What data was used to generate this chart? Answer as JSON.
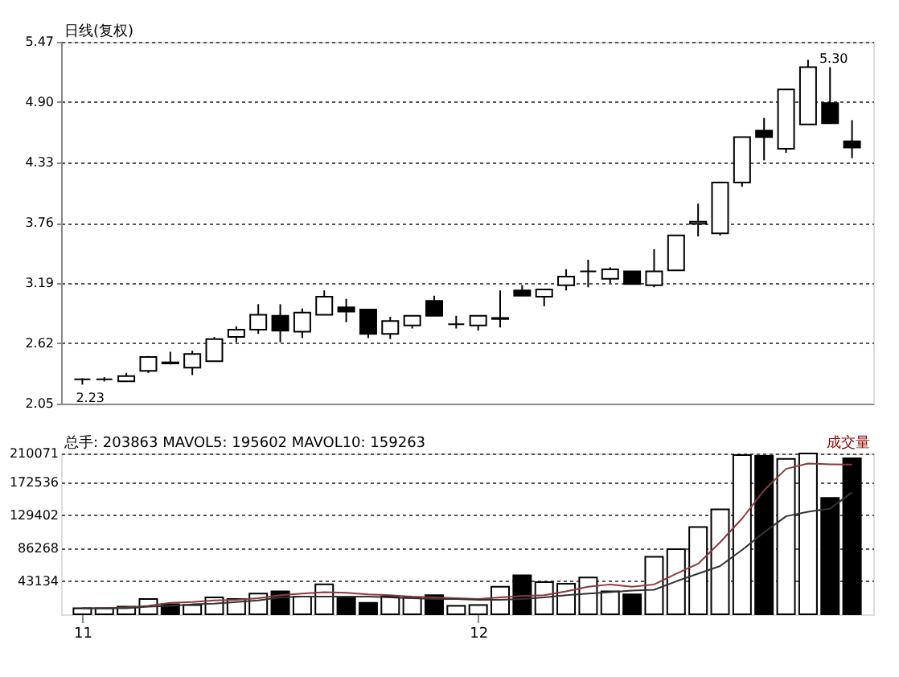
{
  "chart_data": [
    {
      "type": "candlestick",
      "title": "日线(复权)",
      "categories": [
        "11",
        null,
        null,
        null,
        null,
        null,
        null,
        null,
        null,
        null,
        null,
        null,
        null,
        null,
        null,
        null,
        null,
        null,
        "12",
        null,
        null,
        null,
        null,
        null,
        null,
        null,
        null,
        null,
        null,
        null,
        null,
        null,
        null,
        null,
        null,
        null
      ],
      "ohlc": [
        [
          2.28,
          2.29,
          2.23,
          2.28
        ],
        [
          2.28,
          2.3,
          2.26,
          2.28
        ],
        [
          2.26,
          2.34,
          2.26,
          2.31
        ],
        [
          2.36,
          2.5,
          2.34,
          2.49
        ],
        [
          2.43,
          2.54,
          2.42,
          2.44
        ],
        [
          2.39,
          2.55,
          2.32,
          2.52
        ],
        [
          2.45,
          2.68,
          2.45,
          2.66
        ],
        [
          2.68,
          2.78,
          2.63,
          2.75
        ],
        [
          2.75,
          2.99,
          2.71,
          2.89
        ],
        [
          2.88,
          2.99,
          2.63,
          2.74
        ],
        [
          2.73,
          2.95,
          2.67,
          2.91
        ],
        [
          2.89,
          3.12,
          2.89,
          3.06
        ],
        [
          2.96,
          3.04,
          2.82,
          2.92
        ],
        [
          2.94,
          2.94,
          2.67,
          2.71
        ],
        [
          2.71,
          2.87,
          2.66,
          2.83
        ],
        [
          2.79,
          2.88,
          2.76,
          2.88
        ],
        [
          3.02,
          3.07,
          2.88,
          2.88
        ],
        [
          2.8,
          2.88,
          2.76,
          2.8
        ],
        [
          2.79,
          2.88,
          2.74,
          2.88
        ],
        [
          2.85,
          3.12,
          2.77,
          2.86
        ],
        [
          3.12,
          3.17,
          3.07,
          3.07
        ],
        [
          3.06,
          3.13,
          2.97,
          3.13
        ],
        [
          3.17,
          3.32,
          3.12,
          3.25
        ],
        [
          3.3,
          3.41,
          3.15,
          3.3
        ],
        [
          3.23,
          3.34,
          3.19,
          3.32
        ],
        [
          3.3,
          3.3,
          3.18,
          3.18
        ],
        [
          3.17,
          3.51,
          3.15,
          3.3
        ],
        [
          3.31,
          3.64,
          3.31,
          3.64
        ],
        [
          3.75,
          3.94,
          3.63,
          3.77
        ],
        [
          3.66,
          4.14,
          3.64,
          4.14
        ],
        [
          4.14,
          4.57,
          4.1,
          4.57
        ],
        [
          4.63,
          4.75,
          4.35,
          4.57
        ],
        [
          4.46,
          5.02,
          4.42,
          5.02
        ],
        [
          4.69,
          5.3,
          4.69,
          5.23
        ],
        [
          4.89,
          5.23,
          4.7,
          4.7
        ],
        [
          4.53,
          4.73,
          4.37,
          4.47
        ]
      ],
      "colors": [
        "#000000",
        "#000000",
        "#ffffff",
        "#ffffff",
        "#ffffff",
        "#ffffff",
        "#ffffff",
        "#ffffff",
        "#ffffff",
        "#000000",
        "#ffffff",
        "#ffffff",
        "#000000",
        "#000000",
        "#ffffff",
        "#ffffff",
        "#000000",
        "#000000",
        "#ffffff",
        "#ffffff",
        "#000000",
        "#ffffff",
        "#ffffff",
        "#000000",
        "#ffffff",
        "#000000",
        "#ffffff",
        "#ffffff",
        "#ffffff",
        "#ffffff",
        "#ffffff",
        "#000000",
        "#ffffff",
        "#ffffff",
        "#000000",
        "#000000"
      ],
      "ylim": [
        2.05,
        5.47
      ],
      "yticks": [
        2.05,
        2.62,
        3.19,
        3.76,
        4.33,
        {
          "value": 4.9,
          "label": "4.90"
        },
        5.47
      ],
      "grid": "y",
      "tick_labels": "y",
      "annotations": [
        {
          "text": "5.30",
          "y": 5.3
        },
        {
          "text": "2.23",
          "y": 2.23
        }
      ]
    },
    {
      "type": "bar",
      "categories": [
        "11",
        null,
        null,
        null,
        null,
        null,
        null,
        null,
        null,
        null,
        null,
        null,
        null,
        null,
        null,
        null,
        null,
        null,
        "12",
        null,
        null,
        null,
        null,
        null,
        null,
        null,
        null,
        null,
        null,
        null,
        null,
        null,
        null,
        null,
        null,
        null
      ],
      "series": [
        {
          "type": "bar",
          "colors": [
            "#ffffff",
            "#ffffff",
            "#ffffff",
            "#ffffff",
            "#000000",
            "#ffffff",
            "#ffffff",
            "#ffffff",
            "#ffffff",
            "#000000",
            "#ffffff",
            "#ffffff",
            "#000000",
            "#000000",
            "#ffffff",
            "#ffffff",
            "#000000",
            "#ffffff",
            "#ffffff",
            "#ffffff",
            "#000000",
            "#ffffff",
            "#ffffff",
            "#ffffff",
            "#ffffff",
            "#000000",
            "#ffffff",
            "#ffffff",
            "#ffffff",
            "#ffffff",
            "#ffffff",
            "#000000",
            "#ffffff",
            "#ffffff",
            "#000000",
            "#000000"
          ],
          "values": [
            8000,
            8000,
            10000,
            20000,
            13000,
            12000,
            22000,
            20000,
            27000,
            30000,
            23000,
            39000,
            23000,
            15000,
            23000,
            22000,
            25000,
            11000,
            12000,
            36000,
            51000,
            42000,
            40000,
            48000,
            30000,
            26000,
            75000,
            85000,
            114000,
            137000,
            208000,
            207000,
            203000,
            210000,
            152000,
            203863
          ]
        },
        {
          "type": "line",
          "color": "#8b3a3a",
          "values": [
            8000,
            8000,
            9000,
            11000,
            15000,
            16000,
            18000,
            19000,
            21000,
            25000,
            27000,
            29000,
            28000,
            26000,
            25000,
            23000,
            22000,
            21000,
            20000,
            22000,
            24000,
            25000,
            30000,
            36000,
            39000,
            36000,
            39000,
            53000,
            66000,
            94000,
            125000,
            162000,
            190000,
            197000,
            196000,
            195602
          ]
        },
        {
          "type": "line",
          "color": "#333333",
          "values": [
            8000,
            8000,
            8000,
            10000,
            11000,
            13000,
            14000,
            16000,
            18000,
            22000,
            23000,
            23000,
            23000,
            23000,
            22000,
            21000,
            20000,
            20000,
            19000,
            19000,
            20000,
            22000,
            25000,
            27000,
            29000,
            31000,
            32000,
            43000,
            53000,
            63000,
            84000,
            107000,
            128000,
            134000,
            138000,
            159263
          ]
        }
      ],
      "ylim": [
        0,
        210071
      ],
      "yticks": [
        43134,
        86268,
        129402,
        172536,
        210071
      ],
      "grid": "y",
      "annotations": [
        "总手: 203863  MAVOL5: 195602  MAVOL10: 159263",
        "成交量"
      ]
    }
  ]
}
